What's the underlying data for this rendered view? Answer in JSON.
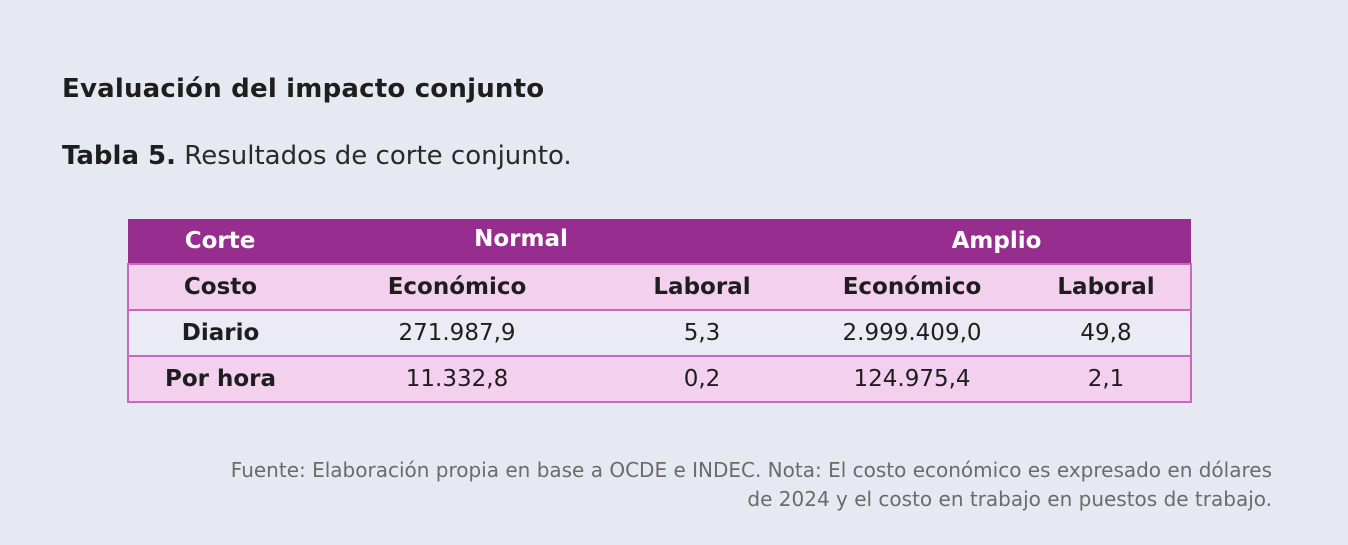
{
  "heading": "Evaluación del impacto conjunto",
  "caption": {
    "label": "Tabla 5.",
    "text": "Resultados de corte conjunto."
  },
  "table": {
    "header": {
      "corte_label": "Corte",
      "normal": "Normal",
      "amplio": "Amplio"
    },
    "subheader": {
      "costo_label": "Costo",
      "normal_economico": "Económico",
      "normal_laboral": "Laboral",
      "amplio_economico": "Económico",
      "amplio_laboral": "Laboral"
    },
    "rows": [
      {
        "label": "Diario",
        "normal_economico": "271.987,9",
        "normal_laboral": "5,3",
        "amplio_economico": "2.999.409,0",
        "amplio_laboral": "49,8"
      },
      {
        "label": "Por hora",
        "normal_economico": "11.332,8",
        "normal_laboral": "0,2",
        "amplio_economico": "124.975,4",
        "amplio_laboral": "2,1"
      }
    ]
  },
  "note": {
    "line1": "Fuente: Elaboración propia en base a OCDE e INDEC. Nota: El costo económico es expresado en dólares",
    "line2": "de 2024 y el costo en trabajo en puestos de trabajo."
  },
  "colors": {
    "header_bg": "#962d8f",
    "subheader_bg": "#f3d0ee",
    "border": "#c56bbd",
    "page_bg": "#e6e9f1"
  }
}
